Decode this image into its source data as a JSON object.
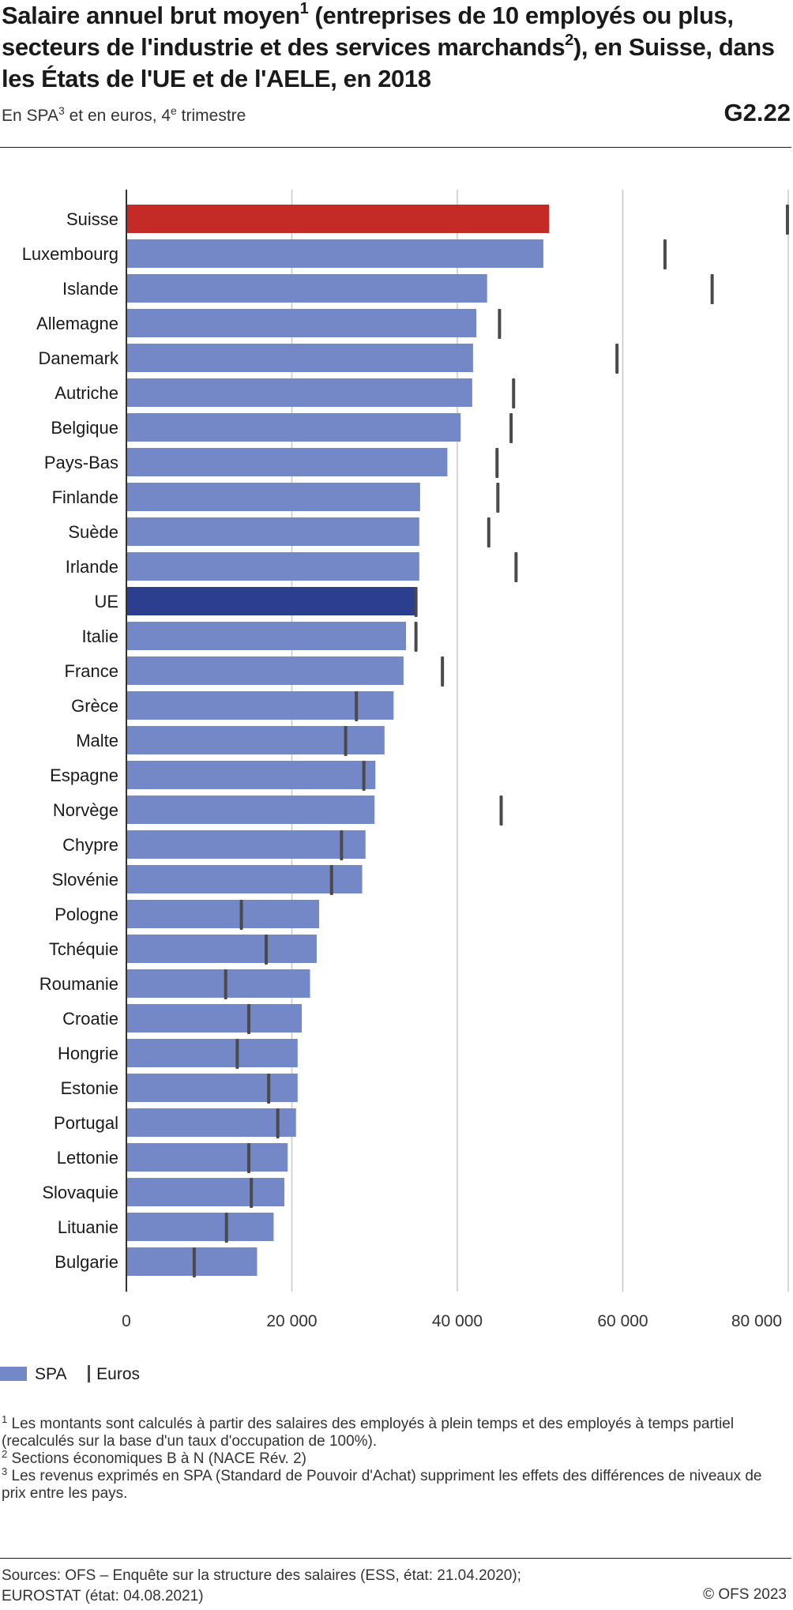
{
  "header": {
    "title_parts": [
      "Salaire annuel brut moyen",
      "1",
      " (entreprises de 10 employés ou plus, secteurs de l'industrie et des services marchands",
      "2",
      "), en Suisse, dans les États de l'UE et de l'AELE, en 2018"
    ],
    "subtitle_parts": [
      "En SPA",
      "3",
      " et en euros, 4",
      "e",
      " trimestre"
    ],
    "code": "G2.22"
  },
  "chart_data": {
    "type": "bar",
    "orientation": "horizontal",
    "categories": [
      "Suisse",
      "Luxembourg",
      "Islande",
      "Allemagne",
      "Danemark",
      "Autriche",
      "Belgique",
      "Pays-Bas",
      "Finlande",
      "Suède",
      "Irlande",
      "UE",
      "Italie",
      "France",
      "Grèce",
      "Malte",
      "Espagne",
      "Norvège",
      "Chypre",
      "Slovénie",
      "Pologne",
      "Tchéquie",
      "Roumanie",
      "Croatie",
      "Hongrie",
      "Estonie",
      "Portugal",
      "Lettonie",
      "Slovaquie",
      "Lituanie",
      "Bulgarie"
    ],
    "series": [
      {
        "name": "SPA",
        "values": [
          51100,
          50400,
          43600,
          42300,
          41900,
          41800,
          40400,
          38800,
          35500,
          35400,
          35400,
          35000,
          33800,
          33500,
          32300,
          31200,
          30100,
          30000,
          28900,
          28500,
          23300,
          23000,
          22200,
          21200,
          20700,
          20700,
          20500,
          19500,
          19100,
          17800,
          15800
        ]
      },
      {
        "name": "Euros",
        "values": [
          79900,
          65100,
          70800,
          45100,
          59300,
          46800,
          46500,
          44800,
          44900,
          43800,
          47100,
          35000,
          35000,
          38200,
          27800,
          26500,
          28700,
          45300,
          26000,
          24800,
          13900,
          16900,
          12000,
          14800,
          13400,
          17200,
          18300,
          14800,
          15100,
          12100,
          8200
        ]
      }
    ],
    "highlight": {
      "Suisse": "#c42b26",
      "UE": "#2b3f8e"
    },
    "colors": {
      "SPA": "#7488c8",
      "Euros": "#4a4a4a"
    },
    "x_ticks": [
      0,
      20000,
      40000,
      60000,
      80000
    ],
    "x_tick_labels": [
      "0",
      "20 000",
      "40 000",
      "60 000",
      "80 000"
    ],
    "xlim": [
      0,
      80000
    ],
    "grid": true,
    "legend_position": "bottom-left"
  },
  "legend": {
    "spa": "SPA",
    "euros": "Euros"
  },
  "notes": [
    {
      "num": "1",
      "text": " Les montants sont calculés à partir des salaires des employés à plein temps et des employés à temps partiel (recalculés sur la base d'un taux d'occupation de 100%)."
    },
    {
      "num": "2",
      "text": " Sections économiques B à N (NACE Rév. 2)"
    },
    {
      "num": "3",
      "text": " Les revenus exprimés en SPA (Standard de Pouvoir d'Achat) suppriment les effets des différences de niveaux de prix entre les pays."
    }
  ],
  "footer": {
    "sources_line1": "Sources: OFS – Enquête sur la structure des salaires (ESS, état: 21.04.2020);",
    "sources_line2": "EUROSTAT (état: 04.08.2021)",
    "copyright": "© OFS 2023"
  }
}
